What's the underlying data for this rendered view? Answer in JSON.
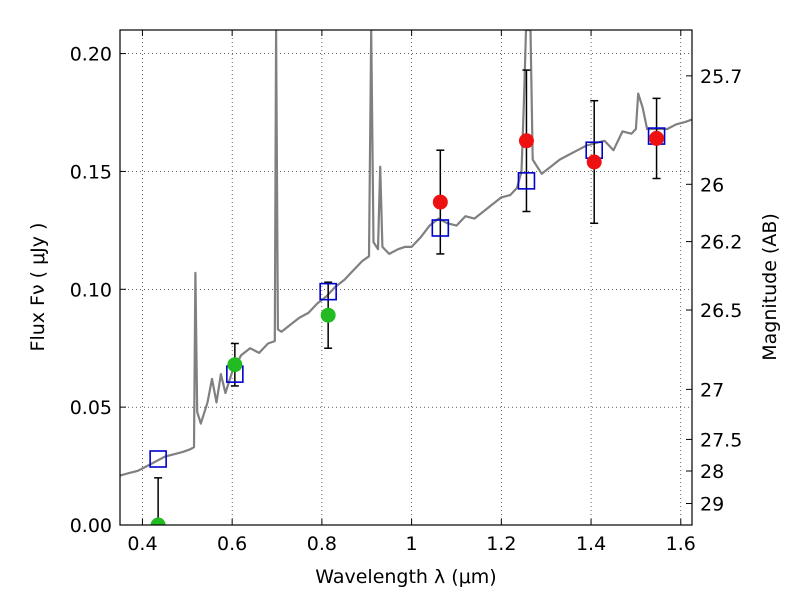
{
  "chart_data": {
    "type": "scatter",
    "xlabel": "Wavelength  λ (μm)",
    "ylabel": "Flux  Fν  ( μJy )",
    "y2label": "Magnitude (AB)",
    "xlim": [
      0.35,
      1.625
    ],
    "ylim": [
      0.0,
      0.21
    ],
    "grid": true,
    "x_ticks": [
      {
        "value": 0.4,
        "label": "0.4"
      },
      {
        "value": 0.6,
        "label": "0.6"
      },
      {
        "value": 0.8,
        "label": "0.8"
      },
      {
        "value": 1.0,
        "label": "1"
      },
      {
        "value": 1.2,
        "label": "1.2"
      },
      {
        "value": 1.4,
        "label": "1.4"
      },
      {
        "value": 1.6,
        "label": "1.6"
      }
    ],
    "y_ticks": [
      {
        "value": 0.0,
        "label": "0.00"
      },
      {
        "value": 0.05,
        "label": "0.05"
      },
      {
        "value": 0.1,
        "label": "0.10"
      },
      {
        "value": 0.15,
        "label": "0.15"
      },
      {
        "value": 0.2,
        "label": "0.20"
      }
    ],
    "mag_ticks": [
      {
        "mag": 25.7,
        "label": "25.7"
      },
      {
        "mag": 26,
        "label": "26"
      },
      {
        "mag": 26.2,
        "label": "26.2"
      },
      {
        "mag": 26.5,
        "label": "26.5"
      },
      {
        "mag": 27,
        "label": "27"
      },
      {
        "mag": 27.5,
        "label": "27.5"
      },
      {
        "mag": 28,
        "label": "28"
      },
      {
        "mag": 29,
        "label": "29"
      }
    ],
    "spectrum": {
      "color": "#808080",
      "points": [
        [
          0.35,
          0.021
        ],
        [
          0.37,
          0.022
        ],
        [
          0.39,
          0.023
        ],
        [
          0.41,
          0.025
        ],
        [
          0.43,
          0.027
        ],
        [
          0.45,
          0.029
        ],
        [
          0.47,
          0.03
        ],
        [
          0.49,
          0.031
        ],
        [
          0.505,
          0.032
        ],
        [
          0.515,
          0.033
        ],
        [
          0.518,
          0.107
        ],
        [
          0.522,
          0.048
        ],
        [
          0.53,
          0.043
        ],
        [
          0.545,
          0.052
        ],
        [
          0.555,
          0.062
        ],
        [
          0.565,
          0.052
        ],
        [
          0.575,
          0.064
        ],
        [
          0.585,
          0.056
        ],
        [
          0.6,
          0.065
        ],
        [
          0.62,
          0.072
        ],
        [
          0.64,
          0.075
        ],
        [
          0.66,
          0.073
        ],
        [
          0.68,
          0.077
        ],
        [
          0.695,
          0.078
        ],
        [
          0.698,
          0.21
        ],
        [
          0.702,
          0.083
        ],
        [
          0.71,
          0.082
        ],
        [
          0.73,
          0.085
        ],
        [
          0.75,
          0.088
        ],
        [
          0.77,
          0.09
        ],
        [
          0.79,
          0.094
        ],
        [
          0.81,
          0.097
        ],
        [
          0.83,
          0.101
        ],
        [
          0.85,
          0.104
        ],
        [
          0.87,
          0.108
        ],
        [
          0.89,
          0.112
        ],
        [
          0.905,
          0.114
        ],
        [
          0.91,
          0.21
        ],
        [
          0.915,
          0.12
        ],
        [
          0.925,
          0.117
        ],
        [
          0.93,
          0.152
        ],
        [
          0.935,
          0.118
        ],
        [
          0.95,
          0.115
        ],
        [
          0.97,
          0.117
        ],
        [
          0.985,
          0.118
        ],
        [
          0.99,
          0.118
        ],
        [
          1.0,
          0.118
        ],
        [
          1.02,
          0.122
        ],
        [
          1.04,
          0.127
        ],
        [
          1.06,
          0.13
        ],
        [
          1.08,
          0.128
        ],
        [
          1.1,
          0.127
        ],
        [
          1.12,
          0.131
        ],
        [
          1.14,
          0.13
        ],
        [
          1.16,
          0.133
        ],
        [
          1.18,
          0.136
        ],
        [
          1.2,
          0.139
        ],
        [
          1.22,
          0.14
        ],
        [
          1.235,
          0.143
        ],
        [
          1.245,
          0.15
        ],
        [
          1.25,
          0.178
        ],
        [
          1.255,
          0.21
        ],
        [
          1.26,
          0.21
        ],
        [
          1.265,
          0.21
        ],
        [
          1.27,
          0.155
        ],
        [
          1.29,
          0.149
        ],
        [
          1.31,
          0.152
        ],
        [
          1.33,
          0.155
        ],
        [
          1.35,
          0.157
        ],
        [
          1.37,
          0.159
        ],
        [
          1.39,
          0.161
        ],
        [
          1.41,
          0.162
        ],
        [
          1.43,
          0.163
        ],
        [
          1.45,
          0.159
        ],
        [
          1.47,
          0.167
        ],
        [
          1.49,
          0.166
        ],
        [
          1.5,
          0.168
        ],
        [
          1.505,
          0.183
        ],
        [
          1.515,
          0.177
        ],
        [
          1.525,
          0.168
        ],
        [
          1.55,
          0.168
        ],
        [
          1.57,
          0.168
        ],
        [
          1.59,
          0.17
        ],
        [
          1.61,
          0.171
        ],
        [
          1.625,
          0.172
        ]
      ]
    },
    "model_points": {
      "marker": "open-square",
      "color": "#0000cc",
      "points": [
        [
          0.435,
          0.028
        ],
        [
          0.606,
          0.064
        ],
        [
          0.814,
          0.099
        ],
        [
          1.064,
          0.126
        ],
        [
          1.256,
          0.146
        ],
        [
          1.407,
          0.159
        ],
        [
          1.546,
          0.165
        ]
      ]
    },
    "observed_optical": {
      "marker": "circle",
      "color": "#22bb22",
      "points": [
        {
          "x": 0.435,
          "y": 0.0,
          "err": 0.02
        },
        {
          "x": 0.606,
          "y": 0.068,
          "err": 0.009
        },
        {
          "x": 0.814,
          "y": 0.089,
          "err": 0.014
        }
      ]
    },
    "observed_nir": {
      "marker": "circle",
      "color": "#ee1111",
      "points": [
        {
          "x": 1.064,
          "y": 0.137,
          "err": 0.022
        },
        {
          "x": 1.256,
          "y": 0.163,
          "err": 0.03
        },
        {
          "x": 1.407,
          "y": 0.154,
          "err": 0.026
        },
        {
          "x": 1.546,
          "y": 0.164,
          "err": 0.017
        }
      ]
    }
  }
}
